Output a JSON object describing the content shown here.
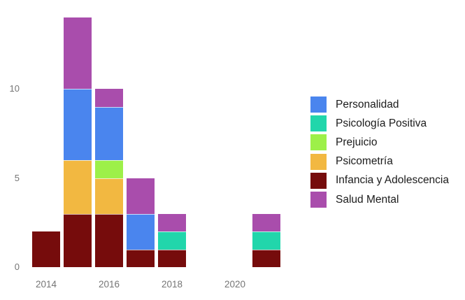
{
  "chart_data": {
    "type": "bar",
    "stacked": true,
    "title": "",
    "xlabel": "",
    "ylabel": "",
    "x_years": [
      2014,
      2015,
      2016,
      2017,
      2018,
      2021
    ],
    "xticks": [
      {
        "year": 2014,
        "label": "2014"
      },
      {
        "year": 2016,
        "label": "2016"
      },
      {
        "year": 2018,
        "label": "2018"
      },
      {
        "year": 2020,
        "label": "2020"
      }
    ],
    "yticks": [
      0,
      5,
      10
    ],
    "ylim": [
      0,
      14.2
    ],
    "grid": false,
    "legend_position": "right",
    "series": [
      {
        "name": "Personalidad",
        "color": "#4a85ee",
        "values": [
          0,
          4,
          3,
          2,
          0,
          0
        ]
      },
      {
        "name": "Psicología Positiva",
        "color": "#21d6ab",
        "values": [
          0,
          0,
          0,
          0,
          1,
          1
        ]
      },
      {
        "name": "Prejuicio",
        "color": "#9df049",
        "values": [
          0,
          0,
          1,
          0,
          0,
          0
        ]
      },
      {
        "name": "Psicometría",
        "color": "#f2b841",
        "values": [
          0,
          3,
          2,
          0,
          0,
          0
        ]
      },
      {
        "name": "Infancia y Adolescencia",
        "color": "#760c0c",
        "values": [
          2,
          3,
          3,
          1,
          1,
          1
        ]
      },
      {
        "name": "Salud Mental",
        "color": "#a94dac",
        "values": [
          0,
          4,
          1,
          2,
          1,
          1
        ]
      }
    ],
    "stack_order_bottom_to_top": [
      "Infancia y Adolescencia",
      "Psicometría",
      "Prejuicio",
      "Psicología Positiva",
      "Personalidad",
      "Salud Mental"
    ],
    "bar_totals": [
      2,
      14,
      10,
      5,
      3,
      3
    ]
  },
  "colors": {
    "background": "#ffffff",
    "axis_labels": "#757575",
    "legend_text": "#1b1b1b",
    "segment_divider": "rgba(255,255,255,0.7)"
  }
}
